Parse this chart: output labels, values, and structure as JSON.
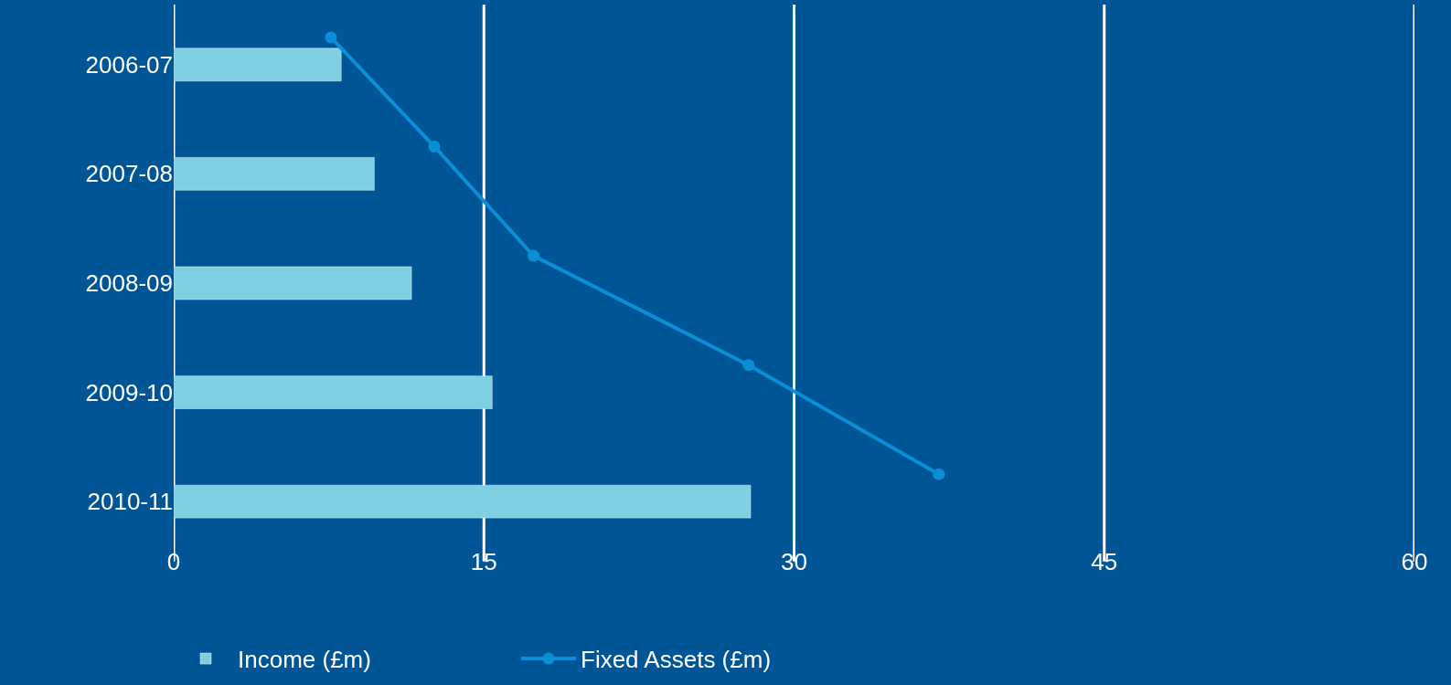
{
  "chart_data": {
    "type": "bar",
    "orientation": "horizontal",
    "categories": [
      "2006-07",
      "2007-08",
      "2008-09",
      "2009-10",
      "2010-11"
    ],
    "series": [
      {
        "name": "Income (£m)",
        "color": "#7fcfe3",
        "values": [
          8.1,
          9.7,
          11.5,
          15.4,
          27.9
        ]
      },
      {
        "name": "Fixed Assets (£m)",
        "type": "line",
        "color": "#0a8fd6",
        "values": [
          7.6,
          12.6,
          17.4,
          27.8,
          37.0
        ]
      }
    ],
    "xlim": [
      0,
      60
    ],
    "xticks": [
      0,
      15,
      30,
      45,
      60
    ],
    "grid": "x",
    "legend": "bottom",
    "marker": "circle",
    "line_style": "solid"
  }
}
